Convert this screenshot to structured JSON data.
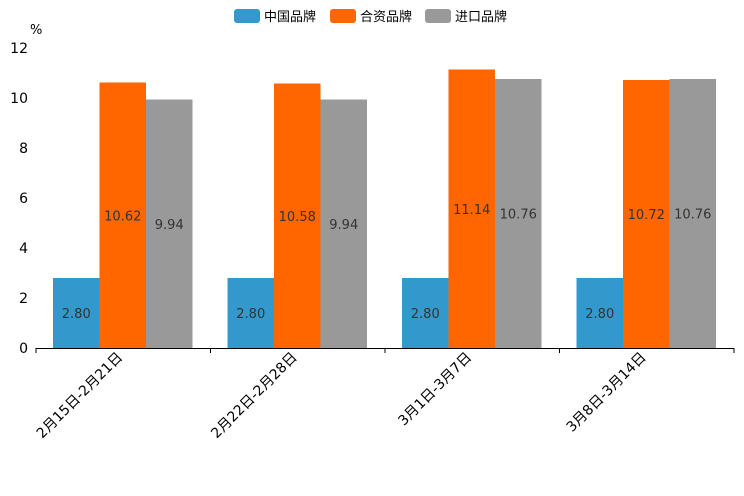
{
  "chart_data": {
    "type": "bar",
    "ylabel": "%",
    "ylim": [
      0,
      12
    ],
    "yticks": [
      0,
      2,
      4,
      6,
      8,
      10,
      12
    ],
    "categories": [
      "2月15日-2月21日",
      "2月22日-2月28日",
      "3月1日-3月7日",
      "3月8日-3月14日"
    ],
    "series": [
      {
        "name": "中国品牌",
        "color": "#3399cc",
        "values": [
          2.8,
          2.8,
          2.8,
          2.8
        ],
        "labels": [
          "2.80",
          "2.80",
          "2.80",
          "2.80"
        ]
      },
      {
        "name": "合资品牌",
        "color": "#ff6600",
        "values": [
          10.62,
          10.58,
          11.14,
          10.72
        ],
        "labels": [
          "10.62",
          "10.58",
          "11.14",
          "10.72"
        ]
      },
      {
        "name": "进口品牌",
        "color": "#999999",
        "values": [
          9.94,
          9.94,
          10.76,
          10.76
        ],
        "labels": [
          "9.94",
          "9.94",
          "10.76",
          "10.76"
        ]
      }
    ],
    "legend_position": "top-center"
  }
}
